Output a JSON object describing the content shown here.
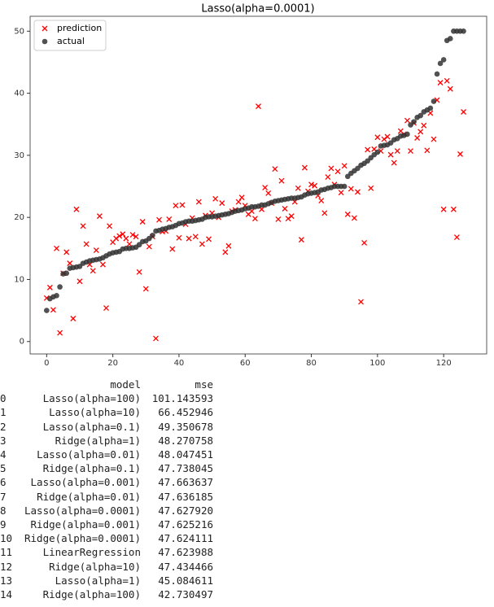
{
  "chart_data": {
    "type": "scatter",
    "title": "Lasso(alpha=0.0001)",
    "x": [
      0,
      1,
      2,
      3,
      4,
      5,
      6,
      7,
      8,
      9,
      10,
      11,
      12,
      13,
      14,
      15,
      16,
      17,
      18,
      19,
      20,
      21,
      22,
      23,
      24,
      25,
      26,
      27,
      28,
      29,
      30,
      31,
      32,
      33,
      34,
      35,
      36,
      37,
      38,
      39,
      40,
      41,
      42,
      43,
      44,
      45,
      46,
      47,
      48,
      49,
      50,
      51,
      52,
      53,
      54,
      55,
      56,
      57,
      58,
      59,
      60,
      61,
      62,
      63,
      64,
      65,
      66,
      67,
      68,
      69,
      70,
      71,
      72,
      73,
      74,
      75,
      76,
      77,
      78,
      79,
      80,
      81,
      82,
      83,
      84,
      85,
      86,
      87,
      88,
      89,
      90,
      91,
      92,
      93,
      94,
      95,
      96,
      97,
      98,
      99,
      100,
      101,
      102,
      103,
      104,
      105,
      106,
      107,
      108,
      109,
      110,
      111,
      112,
      113,
      114,
      115,
      116,
      117,
      118,
      119,
      120,
      121,
      122,
      123,
      124,
      125,
      126
    ],
    "series": [
      {
        "name": "prediction",
        "color": "#ff0000",
        "marker": "x",
        "values": [
          7.0,
          8.7,
          5.1,
          15.0,
          1.4,
          11.0,
          14.4,
          12.6,
          3.7,
          21.3,
          9.7,
          18.6,
          15.7,
          12.4,
          11.4,
          14.7,
          20.2,
          12.4,
          5.4,
          18.6,
          16.0,
          16.6,
          17.0,
          17.3,
          16.6,
          15.7,
          17.2,
          16.9,
          11.2,
          19.3,
          8.5,
          15.3,
          16.9,
          0.5,
          19.6,
          17.7,
          17.8,
          19.7,
          14.9,
          21.9,
          16.7,
          22.0,
          18.9,
          16.6,
          19.9,
          16.9,
          22.5,
          15.7,
          20.3,
          16.5,
          20.7,
          23.0,
          20.0,
          22.3,
          14.4,
          15.4,
          21.0,
          21.2,
          22.5,
          23.2,
          21.9,
          20.5,
          21.0,
          19.8,
          37.9,
          21.3,
          24.8,
          23.9,
          22.3,
          27.8,
          19.7,
          25.9,
          21.4,
          19.8,
          20.2,
          22.5,
          24.7,
          16.4,
          28.0,
          24.2,
          25.3,
          25.1,
          23.5,
          22.7,
          20.7,
          26.5,
          27.9,
          25.3,
          27.4,
          24.0,
          28.3,
          20.5,
          24.6,
          19.9,
          24.1,
          6.4,
          15.9,
          30.9,
          24.7,
          31.0,
          32.9,
          30.7,
          32.6,
          33.0,
          30.1,
          28.8,
          30.7,
          33.9,
          33.4,
          35.6,
          30.7,
          35.2,
          32.8,
          33.8,
          34.8,
          30.8,
          36.8,
          32.6,
          38.9,
          41.7,
          21.3,
          42.0,
          40.7,
          21.3,
          16.8,
          30.2,
          37.0
        ]
      },
      {
        "name": "actual",
        "color": "#333333",
        "marker": "o",
        "values": [
          5.0,
          6.9,
          7.2,
          7.4,
          8.8,
          10.9,
          11.0,
          11.8,
          11.9,
          12.0,
          12.1,
          12.6,
          12.8,
          13.0,
          13.1,
          13.2,
          13.3,
          13.5,
          13.8,
          14.1,
          14.3,
          14.4,
          14.5,
          14.9,
          15.0,
          15.0,
          15.1,
          15.2,
          15.6,
          16.1,
          16.2,
          16.6,
          17.1,
          17.8,
          17.9,
          18.1,
          18.2,
          18.4,
          18.5,
          18.7,
          19.0,
          19.1,
          19.3,
          19.4,
          19.4,
          19.5,
          19.6,
          19.7,
          20.0,
          20.1,
          20.1,
          20.2,
          20.3,
          20.4,
          20.5,
          20.6,
          20.8,
          21.0,
          21.1,
          21.2,
          21.4,
          21.5,
          21.7,
          21.7,
          21.8,
          22.0,
          22.0,
          22.2,
          22.4,
          22.6,
          22.7,
          22.8,
          22.9,
          23.0,
          23.1,
          23.1,
          23.2,
          23.3,
          23.6,
          23.8,
          23.9,
          24.0,
          24.1,
          24.4,
          24.5,
          24.7,
          24.8,
          25.0,
          25.0,
          25.0,
          25.0,
          26.6,
          27.1,
          27.5,
          27.9,
          28.4,
          28.7,
          29.1,
          29.6,
          30.1,
          30.5,
          31.5,
          31.6,
          31.7,
          32.0,
          32.5,
          32.7,
          33.1,
          33.2,
          33.4,
          34.9,
          35.4,
          36.1,
          36.4,
          37.0,
          37.3,
          37.6,
          38.7,
          43.1,
          44.8,
          45.4,
          48.5,
          48.8,
          50.0,
          50.0,
          50.0,
          50.0
        ]
      }
    ],
    "xlim": [
      -5,
      133
    ],
    "xticks": [
      0,
      20,
      40,
      60,
      80,
      100,
      120
    ],
    "ylim": [
      -2,
      52.4
    ],
    "yticks": [
      0,
      10,
      20,
      30,
      40,
      50
    ],
    "legend": "upper left"
  },
  "table": {
    "columns": [
      "model",
      "mse"
    ],
    "rows": [
      [
        "0",
        "Lasso(alpha=100)",
        "101.143593"
      ],
      [
        "1",
        "Lasso(alpha=10)",
        "66.452946"
      ],
      [
        "2",
        "Lasso(alpha=0.1)",
        "49.350678"
      ],
      [
        "3",
        "Ridge(alpha=1)",
        "48.270758"
      ],
      [
        "4",
        "Lasso(alpha=0.01)",
        "48.047451"
      ],
      [
        "5",
        "Ridge(alpha=0.1)",
        "47.738045"
      ],
      [
        "6",
        "Lasso(alpha=0.001)",
        "47.663637"
      ],
      [
        "7",
        "Ridge(alpha=0.01)",
        "47.636185"
      ],
      [
        "8",
        "Lasso(alpha=0.0001)",
        "47.627920"
      ],
      [
        "9",
        "Ridge(alpha=0.001)",
        "47.625216"
      ],
      [
        "10",
        "Ridge(alpha=0.0001)",
        "47.624111"
      ],
      [
        "11",
        "LinearRegression",
        "47.623988"
      ],
      [
        "12",
        "Ridge(alpha=10)",
        "47.434466"
      ],
      [
        "13",
        "Lasso(alpha=1)",
        "45.084611"
      ],
      [
        "14",
        "Ridge(alpha=100)",
        "42.730497"
      ]
    ]
  }
}
